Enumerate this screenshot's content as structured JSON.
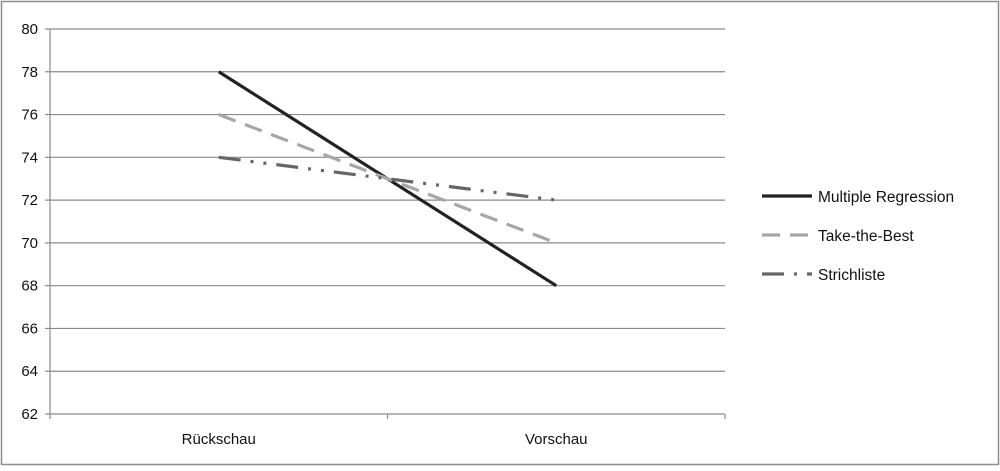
{
  "chart_data": {
    "type": "line",
    "categories": [
      "Rückschau",
      "Vorschau"
    ],
    "ylim": [
      62,
      80
    ],
    "yticks": [
      62,
      64,
      66,
      68,
      70,
      72,
      74,
      76,
      78,
      80
    ],
    "grid": true,
    "legend_position": "right",
    "series": [
      {
        "name": "Multiple Regression",
        "values": [
          78,
          68
        ],
        "color": "#222222",
        "style": "solid"
      },
      {
        "name": "Take-the-Best",
        "values": [
          76,
          70
        ],
        "color": "#a6a6a6",
        "style": "dashed"
      },
      {
        "name": "Strichliste",
        "values": [
          74,
          72
        ],
        "color": "#666666",
        "style": "dash-dot-dot"
      }
    ]
  }
}
